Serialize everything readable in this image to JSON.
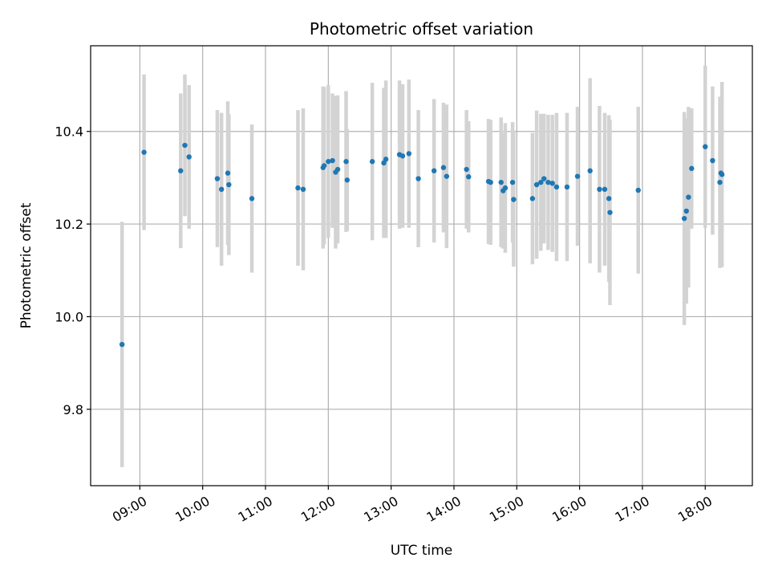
{
  "chart_data": {
    "type": "scatter",
    "title": "Photometric offset variation",
    "xlabel": "UTC time",
    "ylabel": "Photometric offset",
    "xlim": [
      "08:13",
      "18:45"
    ],
    "ylim": [
      9.635,
      10.585
    ],
    "grid": true,
    "legend": "none",
    "x_ticks": [
      "09:00",
      "10:00",
      "11:00",
      "12:00",
      "13:00",
      "14:00",
      "15:00",
      "16:00",
      "17:00",
      "18:00"
    ],
    "y_ticks": [
      9.8,
      10.0,
      10.2,
      10.4
    ],
    "colors": {
      "point": "#1f77b4",
      "errorbar": "#d3d3d3",
      "grid": "#b0b0b0"
    },
    "series": [
      {
        "x": [
          "08:43",
          "09:04",
          "09:39",
          "09:43",
          "09:47",
          "10:14",
          "10:18",
          "10:24",
          "10:25",
          "10:47",
          "11:31",
          "11:36",
          "11:55",
          "11:56",
          "12:00",
          "12:04",
          "12:07",
          "12:09",
          "12:17",
          "12:18",
          "12:42",
          "12:53",
          "12:55",
          "13:08",
          "13:11",
          "13:17",
          "13:26",
          "13:41",
          "13:50",
          "13:53",
          "14:12",
          "14:14",
          "14:33",
          "14:35",
          "14:45",
          "14:47",
          "14:49",
          "14:56",
          "14:57",
          "15:15",
          "15:19",
          "15:23",
          "15:26",
          "15:30",
          "15:34",
          "15:38",
          "15:48",
          "15:58",
          "16:10",
          "16:19",
          "16:24",
          "16:28",
          "16:29",
          "16:56",
          "17:40",
          "17:42",
          "17:44",
          "17:47",
          "18:00",
          "18:07",
          "18:14",
          "18:15",
          "18:16"
        ],
        "y": [
          9.94,
          10.355,
          10.315,
          10.37,
          10.345,
          10.298,
          10.275,
          10.31,
          10.285,
          10.255,
          10.278,
          10.275,
          10.322,
          10.326,
          10.335,
          10.337,
          10.312,
          10.318,
          10.335,
          10.295,
          10.335,
          10.332,
          10.34,
          10.35,
          10.347,
          10.352,
          10.298,
          10.315,
          10.322,
          10.303,
          10.318,
          10.302,
          10.292,
          10.29,
          10.29,
          10.272,
          10.278,
          10.29,
          10.253,
          10.255,
          10.285,
          10.29,
          10.298,
          10.29,
          10.288,
          10.28,
          10.28,
          10.303,
          10.315,
          10.275,
          10.275,
          10.255,
          10.225,
          10.273,
          10.212,
          10.228,
          10.258,
          10.32,
          10.367,
          10.337,
          10.29,
          10.31,
          10.307
        ],
        "yerr": [
          0.265,
          0.168,
          0.167,
          0.153,
          0.155,
          0.148,
          0.165,
          0.155,
          0.152,
          0.16,
          0.168,
          0.175,
          0.175,
          0.17,
          0.165,
          0.145,
          0.165,
          0.16,
          0.152,
          0.11,
          0.17,
          0.162,
          0.17,
          0.16,
          0.155,
          0.16,
          0.148,
          0.155,
          0.14,
          0.155,
          0.128,
          0.12,
          0.135,
          0.135,
          0.14,
          0.125,
          0.14,
          0.13,
          0.145,
          0.142,
          0.16,
          0.148,
          0.14,
          0.146,
          0.148,
          0.16,
          0.16,
          0.15,
          0.2,
          0.18,
          0.165,
          0.18,
          0.2,
          0.18,
          0.23,
          0.2,
          0.195,
          0.13,
          0.175,
          0.16,
          0.185,
          0.165,
          0.2
        ]
      }
    ]
  }
}
